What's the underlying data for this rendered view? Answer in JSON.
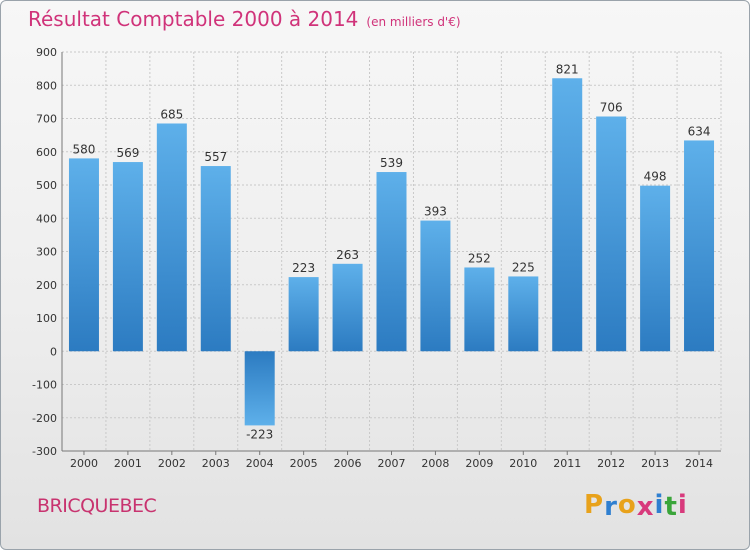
{
  "chart_data": {
    "type": "bar",
    "title": "Résultat Comptable 2000 à 2014",
    "subtitle": "(en milliers d'€)",
    "xlabel": "",
    "ylabel": "",
    "categories": [
      "2000",
      "2001",
      "2002",
      "2003",
      "2004",
      "2005",
      "2006",
      "2007",
      "2008",
      "2009",
      "2010",
      "2011",
      "2012",
      "2013",
      "2014"
    ],
    "values": [
      580,
      569,
      685,
      557,
      -223,
      223,
      263,
      539,
      393,
      252,
      225,
      821,
      706,
      498,
      634
    ],
    "ylim": [
      -300,
      900
    ],
    "yticks": [
      -300,
      -200,
      -100,
      0,
      100,
      200,
      300,
      400,
      500,
      600,
      700,
      800,
      900
    ],
    "grid": true,
    "bar_color": "#3a8fd6"
  },
  "footer": {
    "commune": "BRICQUEBEC",
    "brand_letters": [
      "P",
      "r",
      "o",
      "x",
      "i",
      "t",
      "i"
    ],
    "brand_colors": [
      "#e8a21b",
      "#2f7fd0",
      "#e8a21b",
      "#d83a7c",
      "#2f7fd0",
      "#3aa53a",
      "#d83a7c"
    ]
  }
}
